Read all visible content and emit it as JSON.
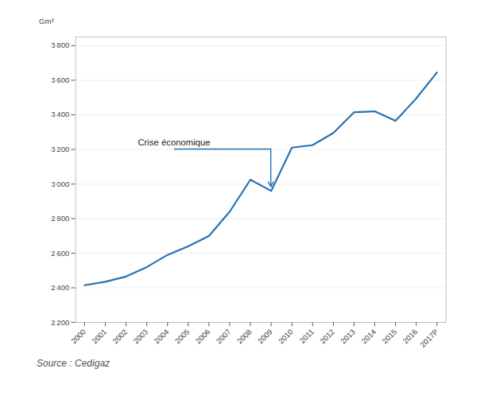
{
  "chart_data": {
    "type": "line",
    "categories": [
      "2000",
      "2001",
      "2002",
      "2003",
      "2004",
      "2005",
      "2006",
      "2007",
      "2008",
      "2009",
      "2010",
      "2011",
      "2012",
      "2013",
      "2014",
      "2015",
      "2016",
      "2017P"
    ],
    "values": [
      2415,
      2435,
      2465,
      2520,
      2590,
      2640,
      2700,
      2840,
      3025,
      2960,
      3210,
      3225,
      3295,
      3415,
      3420,
      3365,
      3495,
      3645
    ],
    "color": "#2472B5",
    "ylabel": "Gm³",
    "ylim": [
      2200,
      3850
    ],
    "yticks": [
      {
        "value": 2200,
        "label": "2 200"
      },
      {
        "value": 2400,
        "label": "2 400"
      },
      {
        "value": 2600,
        "label": "2 600"
      },
      {
        "value": 2800,
        "label": "2 800"
      },
      {
        "value": 3000,
        "label": "3 000"
      },
      {
        "value": 3200,
        "label": "3 200"
      },
      {
        "value": 3400,
        "label": "3 400"
      },
      {
        "value": 3600,
        "label": "3 600"
      },
      {
        "value": 3800,
        "label": "3 800"
      }
    ],
    "grid": true,
    "annotations": [
      {
        "text": "Crise économique",
        "x": "2009",
        "y": 2960
      }
    ],
    "source": "Source : Cedigaz"
  }
}
